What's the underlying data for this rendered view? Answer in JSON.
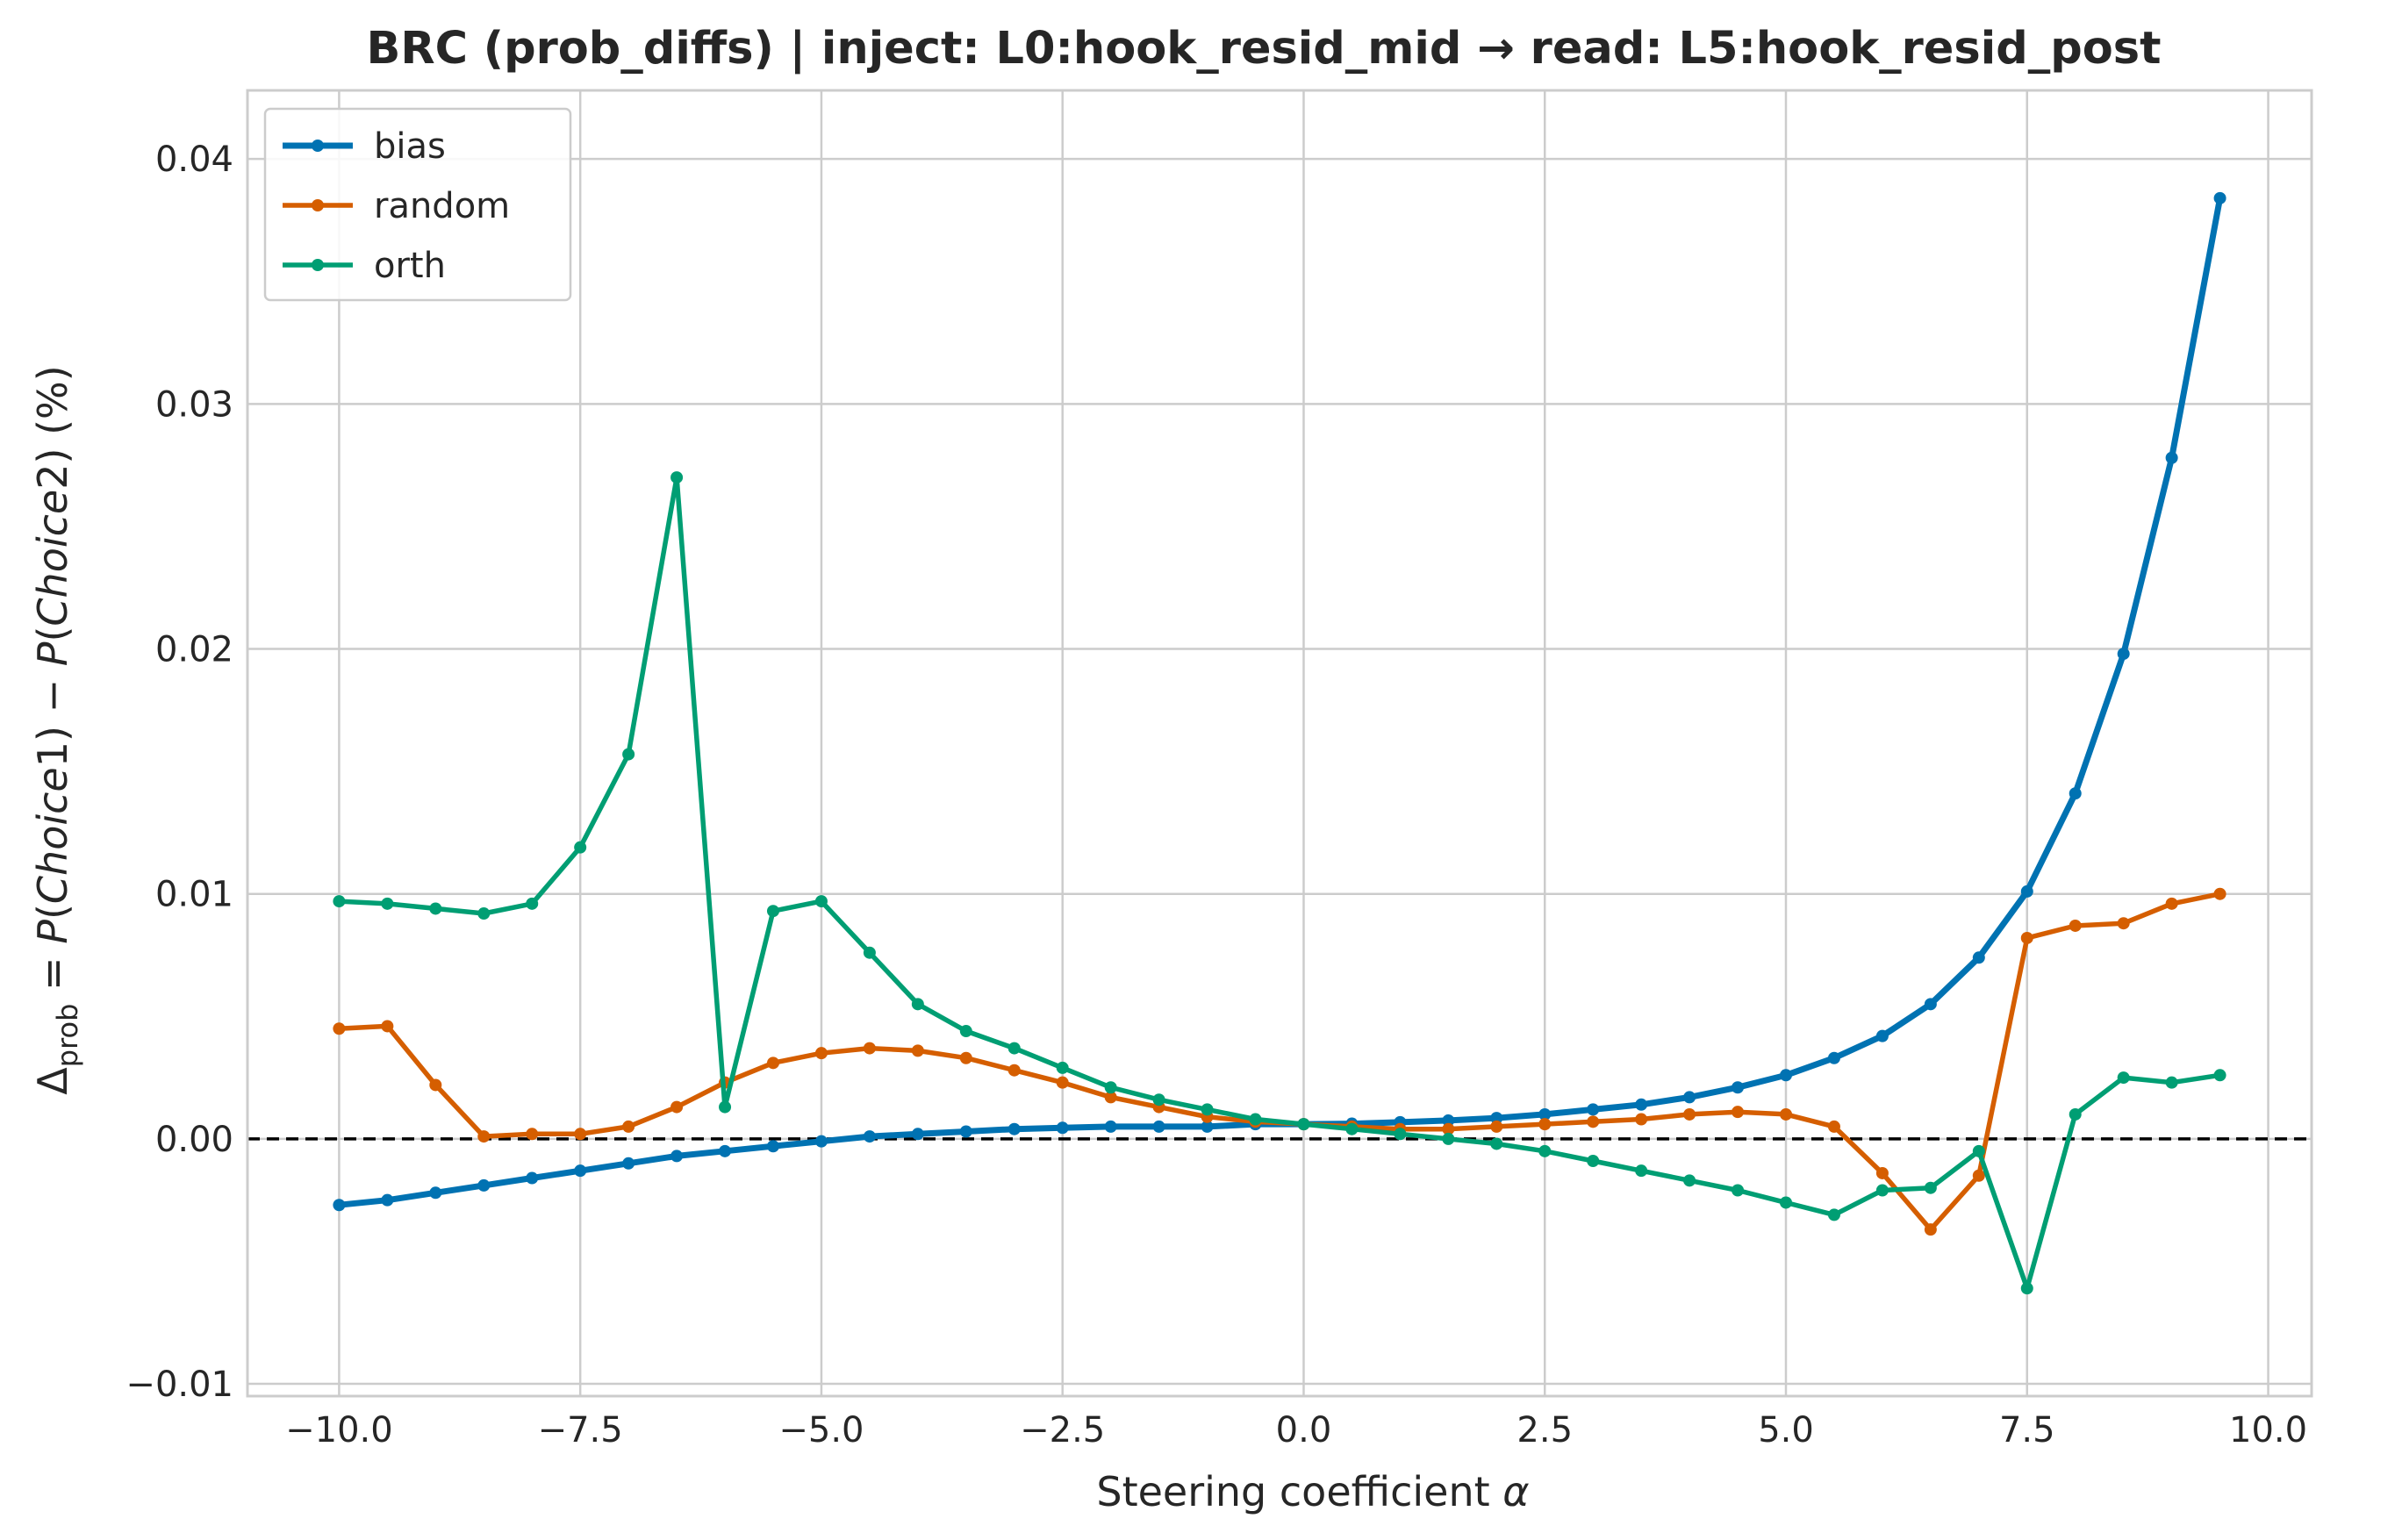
{
  "chart_data": {
    "type": "line",
    "title": "BRC (prob_diffs) | inject: L0:hook_resid_mid → read: L5:hook_resid_post",
    "xlabel": {
      "prefix": "Steering coefficient ",
      "symbol": "α"
    },
    "ylabel": {
      "delta": "Δ",
      "sub": "prob",
      "eq": " = ",
      "p1": "P",
      "choice1": "Choice",
      "n1": "1",
      "minus": ") − ",
      "p2": "P",
      "choice2": "Choice",
      "n2": "2",
      "suffix": ") (%)"
    },
    "xlim": [
      -10.95,
      10.45
    ],
    "ylim": [
      -0.0105,
      0.0428
    ],
    "xticks": [
      -10.0,
      -7.5,
      -5.0,
      -2.5,
      0.0,
      2.5,
      5.0,
      7.5,
      10.0
    ],
    "xtick_labels": [
      "−10.0",
      "−7.5",
      "−5.0",
      "−2.5",
      "0.0",
      "2.5",
      "5.0",
      "7.5",
      "10.0"
    ],
    "yticks": [
      -0.01,
      0.0,
      0.01,
      0.02,
      0.03,
      0.04
    ],
    "ytick_labels": [
      "−0.01",
      "0.00",
      "0.01",
      "0.02",
      "0.03",
      "0.04"
    ],
    "grid": true,
    "legend_position": "top-left",
    "reference_line": {
      "y": 0,
      "style": "dashed",
      "color": "#000000"
    },
    "x": [
      -10.0,
      -9.5,
      -9.0,
      -8.5,
      -8.0,
      -7.5,
      -7.0,
      -6.5,
      -6.0,
      -5.5,
      -5.0,
      -4.5,
      -4.0,
      -3.5,
      -3.0,
      -2.5,
      -2.0,
      -1.5,
      -1.0,
      -0.5,
      0.0,
      0.5,
      1.0,
      1.5,
      2.0,
      2.5,
      3.0,
      3.5,
      4.0,
      4.5,
      5.0,
      5.5,
      6.0,
      6.5,
      7.0,
      7.5,
      8.0,
      8.5,
      9.0,
      9.5
    ],
    "series": [
      {
        "name": "bias",
        "color": "#0072b2",
        "width": 7,
        "values": [
          -0.0027,
          -0.0025,
          -0.0022,
          -0.0019,
          -0.0016,
          -0.0013,
          -0.001,
          -0.0007,
          -0.0005,
          -0.0003,
          -0.0001,
          0.0001,
          0.0002,
          0.0003,
          0.0004,
          0.00045,
          0.0005,
          0.0005,
          0.0005,
          0.0006,
          0.0006,
          0.00062,
          0.00068,
          0.00075,
          0.00085,
          0.001,
          0.0012,
          0.0014,
          0.0017,
          0.0021,
          0.0026,
          0.0033,
          0.0042,
          0.0055,
          0.0074,
          0.0101,
          0.0141,
          0.0198,
          0.0278,
          0.0384
        ]
      },
      {
        "name": "random",
        "color": "#d55e00",
        "width": 5.5,
        "values": [
          0.0045,
          0.0046,
          0.0022,
          0.0001,
          0.0002,
          0.0002,
          0.0005,
          0.0013,
          0.0023,
          0.0031,
          0.0035,
          0.0037,
          0.0036,
          0.0033,
          0.0028,
          0.0023,
          0.0017,
          0.0013,
          0.0009,
          0.0007,
          0.0006,
          0.0005,
          0.0004,
          0.0004,
          0.0005,
          0.0006,
          0.0007,
          0.0008,
          0.001,
          0.0011,
          0.001,
          0.0005,
          -0.0014,
          -0.0037,
          -0.0015,
          0.0082,
          0.0087,
          0.0088,
          0.0096,
          0.01
        ]
      },
      {
        "name": "orth",
        "color": "#009e73",
        "width": 5.5,
        "values": [
          0.0097,
          0.0096,
          0.0094,
          0.0092,
          0.0096,
          0.0119,
          0.0157,
          0.027,
          0.0013,
          0.0093,
          0.0097,
          0.0076,
          0.0055,
          0.0044,
          0.0037,
          0.0029,
          0.0021,
          0.0016,
          0.0012,
          0.0008,
          0.0006,
          0.0004,
          0.0002,
          0.0,
          -0.0002,
          -0.0005,
          -0.0009,
          -0.0013,
          -0.0017,
          -0.0021,
          -0.0026,
          -0.0031,
          -0.0021,
          -0.002,
          -0.0005,
          -0.0061,
          0.001,
          0.0025,
          0.0023,
          0.0026
        ]
      }
    ]
  }
}
